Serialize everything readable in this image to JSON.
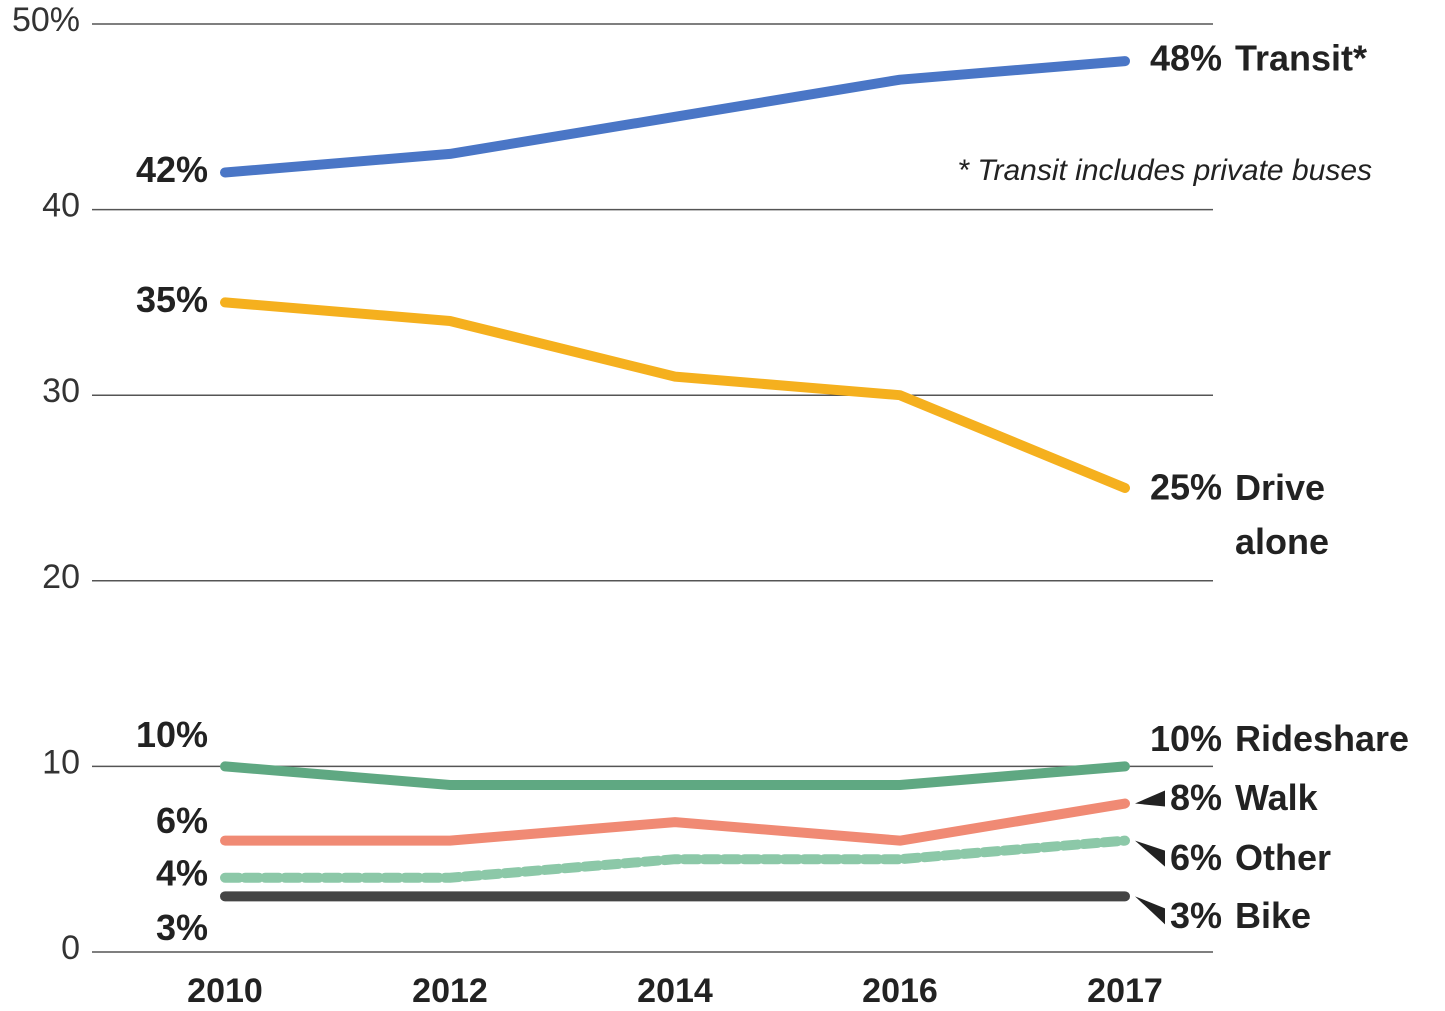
{
  "chart_data": {
    "type": "line",
    "categories": [
      "2010",
      "2012",
      "2014",
      "2016",
      "2017"
    ],
    "series": [
      {
        "name": "Transit*",
        "color": "#4a76c6",
        "values": [
          42,
          43,
          45,
          47,
          48
        ],
        "value_labels": [
          "42%",
          null,
          null,
          null,
          "48%"
        ]
      },
      {
        "name": "Drive alone",
        "color": "#f5b01e",
        "values": [
          35,
          34,
          31,
          30,
          25
        ],
        "value_labels": [
          "35%",
          null,
          null,
          null,
          "25%"
        ]
      },
      {
        "name": "Rideshare",
        "color": "#5fa882",
        "values": [
          10,
          9,
          9,
          9,
          10
        ],
        "value_labels": [
          "10%",
          null,
          null,
          null,
          "10%"
        ]
      },
      {
        "name": "Walk",
        "color": "#f08a74",
        "values": [
          6,
          6,
          7,
          6,
          8
        ],
        "value_labels": [
          "6%",
          null,
          null,
          null,
          "8%"
        ]
      },
      {
        "name": "Other",
        "color": "#8cc8a8",
        "values": [
          4,
          4,
          5,
          5,
          6
        ],
        "value_labels": [
          "4%",
          null,
          null,
          null,
          "6%"
        ],
        "dashed": true
      },
      {
        "name": "Bike",
        "color": "#444444",
        "values": [
          3,
          3,
          3,
          3,
          3
        ],
        "value_labels": [
          "3%",
          null,
          null,
          null,
          "3%"
        ]
      }
    ],
    "annotation": "* Transit includes private buses",
    "ylim": [
      0,
      50
    ],
    "yticks": [
      0,
      10,
      20,
      30,
      40,
      {
        "value": 50,
        "label": "50%"
      }
    ],
    "grid": true
  }
}
